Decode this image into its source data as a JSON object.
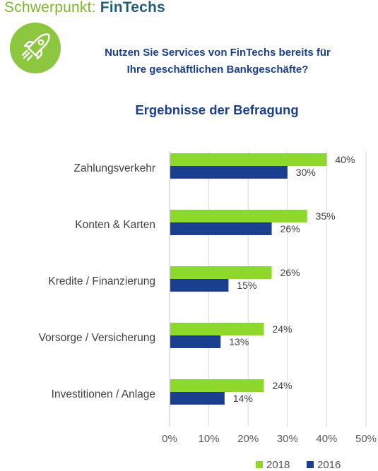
{
  "header": {
    "word1": "Schwerpunkt:",
    "word2": "FinTechs"
  },
  "badge": {
    "icon": "rocket-icon"
  },
  "question": {
    "line1": "Nutzen Sie Services von FinTechs bereits für",
    "line2": "Ihre geschäftlichen Bankgeschäfte?"
  },
  "colors": {
    "green": "#8dd82b",
    "blue": "#1b3f8f",
    "grid": "#d9d9d9"
  },
  "chart_data": {
    "type": "bar",
    "orientation": "horizontal",
    "title": "Ergebnisse der Befragung",
    "xlabel": "",
    "ylabel": "",
    "categories": [
      "Zahlungsverkehr",
      "Konten & Karten",
      "Kredite / Finanzierung",
      "Vorsorge / Versicherung",
      "Investitionen / Anlage"
    ],
    "series": [
      {
        "name": "2018",
        "color": "#8dd82b",
        "values": [
          40,
          35,
          26,
          24,
          24
        ],
        "labels": [
          "40%",
          "35%",
          "26%",
          "24%",
          "24%"
        ]
      },
      {
        "name": "2016",
        "color": "#1b3f8f",
        "values": [
          30,
          26,
          15,
          13,
          14
        ],
        "labels": [
          "30%",
          "26%",
          "15%",
          "13%",
          "14%"
        ]
      }
    ],
    "xlim": [
      0,
      50
    ],
    "ticks": [
      0,
      10,
      20,
      30,
      40,
      50
    ],
    "tick_labels": [
      "0%",
      "10%",
      "20%",
      "30%",
      "40%",
      "50%"
    ],
    "grid": true,
    "legend_position": "bottom-right"
  }
}
